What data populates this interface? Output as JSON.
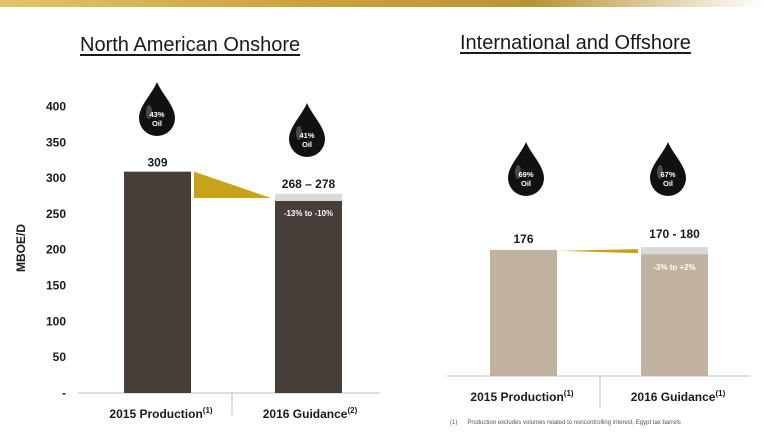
{
  "colors": {
    "dark_bar": "#463e38",
    "light_bar": "#c0b29f",
    "accent_gold": "#c9a21c",
    "range_band": "#d9d9d9",
    "drop": "#111111"
  },
  "chart_data": [
    {
      "type": "bar",
      "title": "North American Onshore",
      "ylabel": "MBOE/D",
      "ylim": [
        0,
        400
      ],
      "yticks": [
        0,
        50,
        100,
        150,
        200,
        250,
        300,
        350,
        400
      ],
      "ytick_labels": [
        "-",
        "50",
        "100",
        "150",
        "200",
        "250",
        "300",
        "350",
        "400"
      ],
      "categories": [
        {
          "label": "2015 Production",
          "sup": "(1)"
        },
        {
          "label": "2016 Guidance",
          "sup": "(2)"
        }
      ],
      "values": [
        309,
        268
      ],
      "range": [
        268,
        278
      ],
      "value_label": "309",
      "range_label": "268 – 278",
      "change_label": "-13% to -10%",
      "oil_share": [
        "43%",
        "41%"
      ],
      "oil_label": "Oil"
    },
    {
      "type": "bar",
      "title": "International and Offshore",
      "ylim": [
        0,
        400
      ],
      "categories": [
        {
          "label": "2015 Production",
          "sup": "(1)"
        },
        {
          "label": "2016 Guidance",
          "sup": "(1)"
        }
      ],
      "values": [
        176,
        170
      ],
      "range": [
        170,
        180
      ],
      "value_label": "176",
      "range_label": "170 - 180",
      "change_label": "-3% to +2%",
      "oil_share": [
        "69%",
        "67%"
      ],
      "oil_label": "Oil"
    }
  ],
  "footnote": {
    "marker": "(1)",
    "text": "Production excludes volumes related to noncontrolling interest, Egypt tax barrels"
  }
}
